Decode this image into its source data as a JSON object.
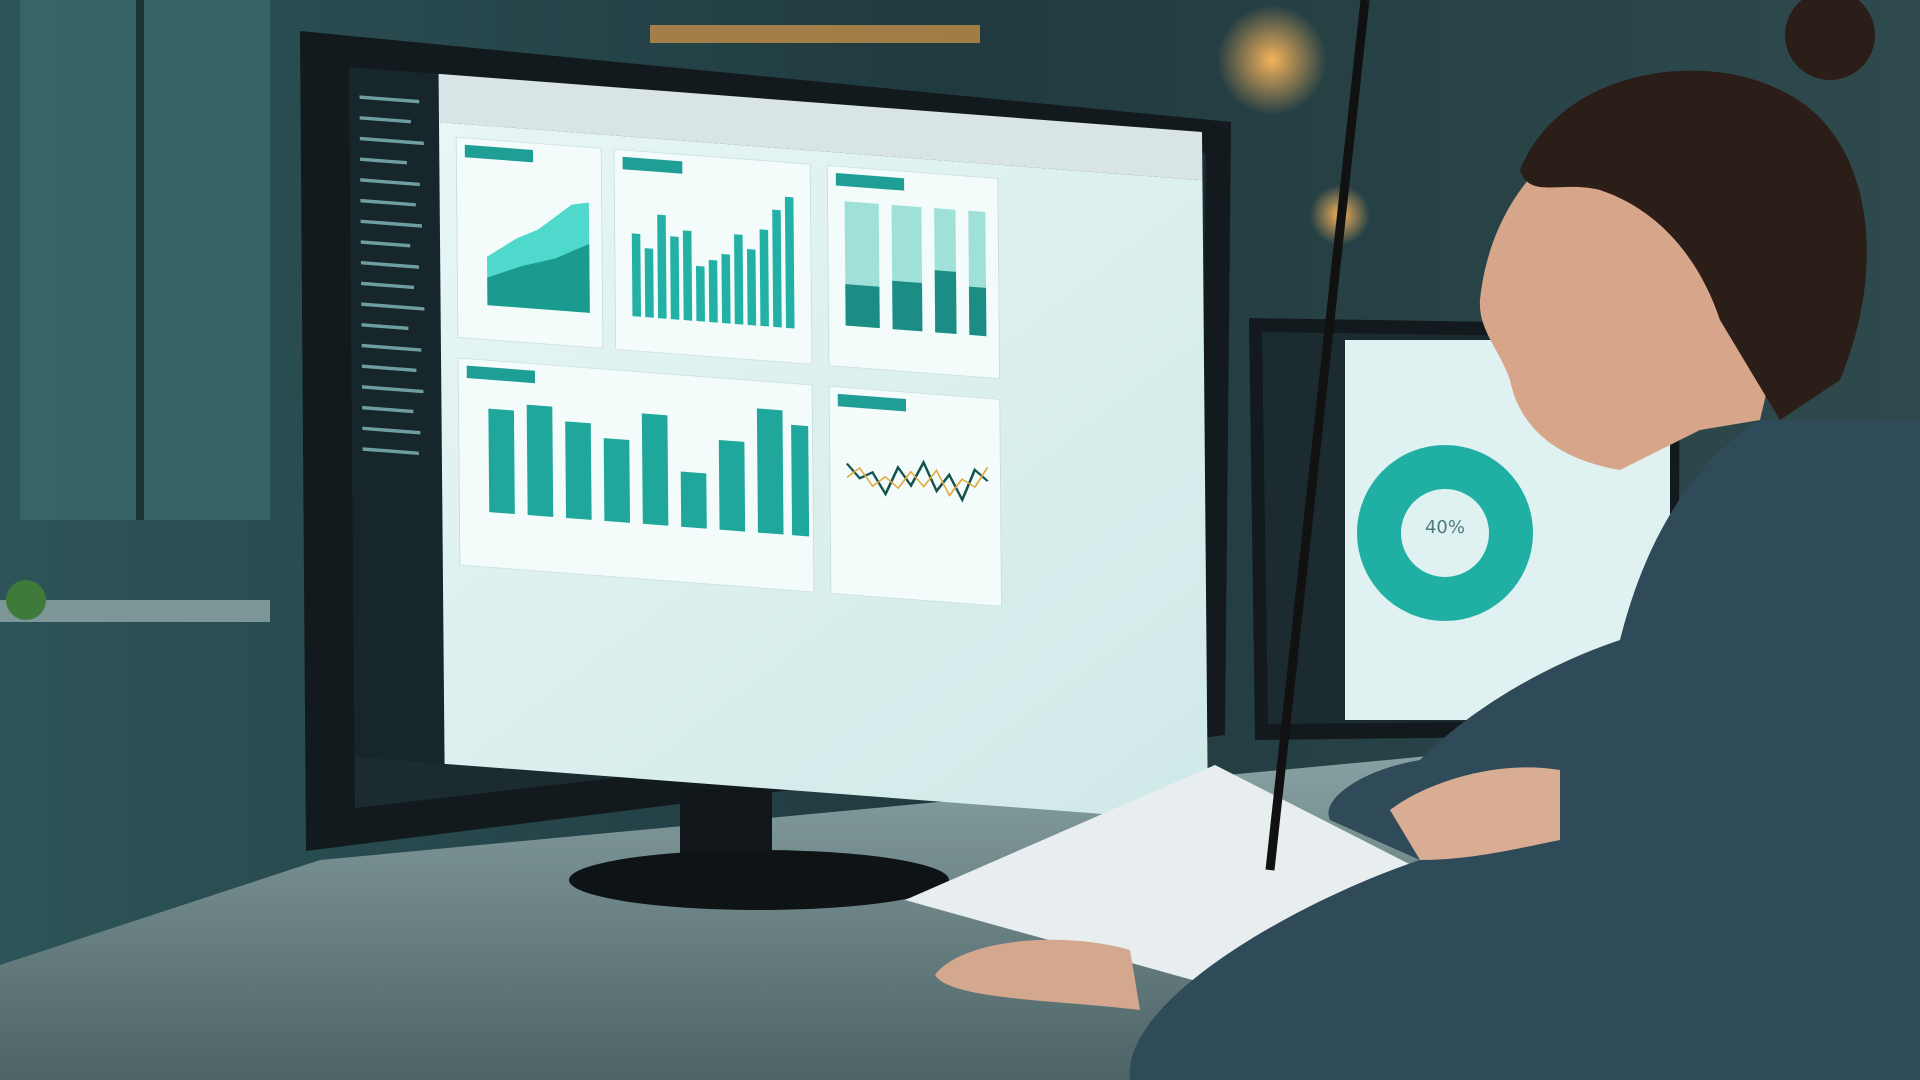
{
  "secondary_monitor": {
    "donut_label": "40%"
  }
}
